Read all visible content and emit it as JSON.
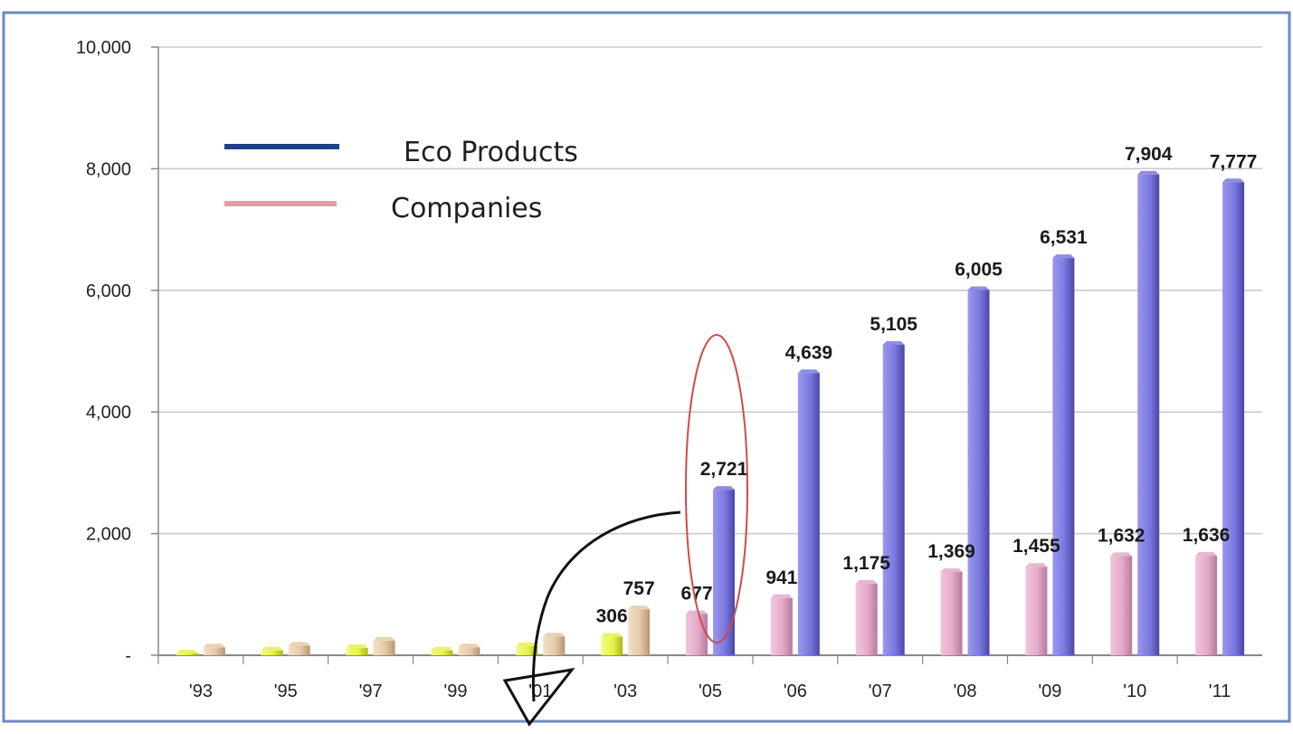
{
  "chart_data": {
    "type": "bar",
    "categories": [
      "'93",
      "'95",
      "'97",
      "'99",
      "'01",
      "'03",
      "'05",
      "'06",
      "'07",
      "'08",
      "'09",
      "'10",
      "'11"
    ],
    "series": [
      {
        "name": "Companies",
        "color": "#e3a9c9",
        "values": [
          null,
          null,
          null,
          null,
          null,
          null,
          677,
          941,
          1175,
          1369,
          1455,
          1632,
          1636
        ],
        "labels": [
          "",
          "",
          "",
          "",
          "",
          "",
          "677",
          "941",
          "1,175",
          "1,369",
          "1,455",
          "1,632",
          "1,636"
        ]
      },
      {
        "name": "Eco Products",
        "color": "#7b78e0",
        "values": [
          null,
          null,
          null,
          null,
          null,
          null,
          2721,
          4639,
          5105,
          6005,
          6531,
          7904,
          7777
        ],
        "labels": [
          "",
          "",
          "",
          "",
          "",
          "",
          "2,721",
          "4,639",
          "5,105",
          "6,005",
          "6,531",
          "7,904",
          "7,777"
        ]
      },
      {
        "color": "#e8f04a",
        "values": [
          30,
          80,
          120,
          80,
          150,
          306,
          null,
          null,
          null,
          null,
          null,
          null,
          null
        ],
        "labels": [
          "",
          "",
          "",
          "",
          "",
          "306",
          "",
          "",
          "",
          "",
          "",
          "",
          ""
        ]
      },
      {
        "color": "#e5c9a8",
        "values": [
          130,
          160,
          240,
          130,
          310,
          757,
          null,
          null,
          null,
          null,
          null,
          null,
          null
        ],
        "labels": [
          "",
          "",
          "",
          "",
          "",
          "757",
          "",
          "",
          "",
          "",
          "",
          "",
          ""
        ]
      }
    ],
    "yticks": [
      {
        "value": 0,
        "label": "-"
      },
      {
        "value": 2000,
        "label": "2,000"
      },
      {
        "value": 4000,
        "label": "4,000"
      },
      {
        "value": 6000,
        "label": "6,000"
      },
      {
        "value": 8000,
        "label": "8,000"
      },
      {
        "value": 10000,
        "label": "10,000"
      }
    ],
    "ylim": [
      0,
      10000
    ],
    "grid": true,
    "legend": {
      "placement": "top-left",
      "entries": [
        {
          "label": "Eco Products",
          "color": "#1f3f8a"
        },
        {
          "label": "Companies",
          "color": "#e89aa8"
        }
      ]
    },
    "annotations": {
      "ellipse_color": "#d04a4a",
      "arrow_color": "#111111"
    }
  },
  "colors": {
    "frame_border": "#6d8ac4",
    "grid": "#c8c8c8",
    "axis": "#888888"
  }
}
